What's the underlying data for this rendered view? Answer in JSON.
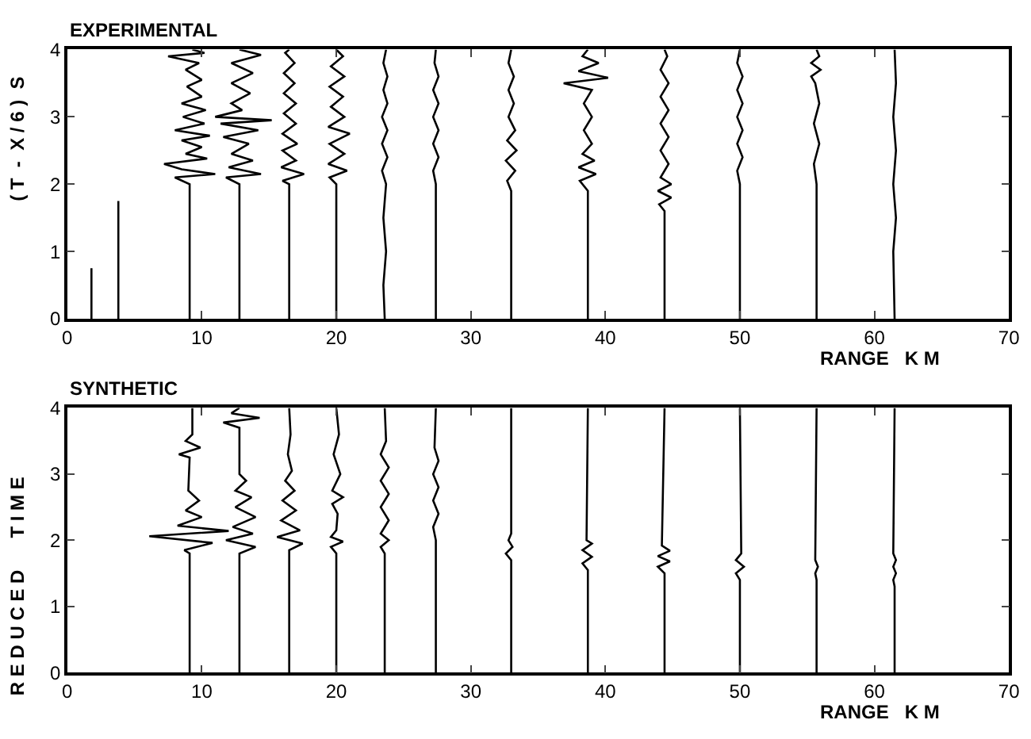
{
  "chart_data": [
    {
      "type": "line",
      "title": "EXPERIMENTAL",
      "xlabel": "RANGE   K M",
      "ylabel": "( T  -  X / 6 )  S",
      "xlim": [
        0,
        70
      ],
      "ylim": [
        0,
        4
      ],
      "xticks": [
        0,
        10,
        20,
        30,
        40,
        50,
        60,
        70
      ],
      "yticks": [
        0,
        1,
        2,
        3,
        4
      ],
      "series": [
        {
          "color": "#000000",
          "x": [
            1.8,
            1.8
          ],
          "values": [
            0,
            0.75
          ]
        },
        {
          "color": "#000000",
          "x": [
            3.8,
            3.8
          ],
          "values": [
            0,
            1.75
          ]
        },
        {
          "color": "#000000",
          "x": [
            9.1,
            9.1,
            8.0,
            11.0,
            8.5,
            7.2,
            10.4,
            8.8,
            10.0,
            8.5,
            10.6,
            8.0,
            10.2,
            8.6,
            10.3,
            8.5,
            10.0,
            8.9,
            10.0,
            8.8,
            9.8,
            7.5,
            10.2,
            9.3
          ],
          "values": [
            0,
            2.0,
            2.1,
            2.15,
            2.22,
            2.3,
            2.38,
            2.45,
            2.55,
            2.65,
            2.72,
            2.8,
            2.9,
            3.0,
            3.1,
            3.2,
            3.3,
            3.45,
            3.55,
            3.7,
            3.8,
            3.9,
            3.95,
            4.0
          ]
        },
        {
          "color": "#000000",
          "x": [
            12.8,
            12.8,
            11.8,
            14.4,
            12.0,
            13.8,
            12.2,
            13.5,
            11.6,
            14.2,
            11.4,
            15.2,
            11.0,
            13.0,
            12.2,
            13.6,
            12.2,
            13.8,
            12.2,
            14.4,
            12.8
          ],
          "values": [
            0,
            2.0,
            2.1,
            2.15,
            2.25,
            2.35,
            2.45,
            2.6,
            2.7,
            2.8,
            2.9,
            2.95,
            3.0,
            3.1,
            3.2,
            3.35,
            3.5,
            3.65,
            3.8,
            3.92,
            4.0
          ]
        },
        {
          "color": "#000000",
          "x": [
            16.5,
            16.5,
            16.0,
            17.6,
            15.9,
            17.0,
            16.0,
            17.1,
            16.0,
            17.0,
            16.1,
            17.0,
            16.1,
            16.9,
            16.1,
            16.9,
            16.2,
            16.5
          ],
          "values": [
            0,
            2.0,
            2.05,
            2.15,
            2.25,
            2.35,
            2.5,
            2.6,
            2.75,
            2.9,
            3.05,
            3.2,
            3.35,
            3.5,
            3.65,
            3.8,
            3.95,
            4.0
          ]
        },
        {
          "color": "#000000",
          "x": [
            20.0,
            20.0,
            19.5,
            20.8,
            19.4,
            20.6,
            19.5,
            21.0,
            19.4,
            20.6,
            19.6,
            20.5,
            19.5,
            20.6,
            19.6,
            20.5,
            20.0
          ],
          "values": [
            0,
            2.0,
            2.1,
            2.2,
            2.3,
            2.45,
            2.6,
            2.75,
            2.85,
            3.0,
            3.15,
            3.3,
            3.45,
            3.6,
            3.75,
            3.9,
            4.0
          ]
        },
        {
          "color": "#000000",
          "x": [
            23.6,
            23.5,
            23.7,
            23.5,
            23.7,
            23.4,
            23.8,
            23.4,
            23.8,
            23.4,
            23.8,
            23.5,
            23.8,
            23.5,
            23.7
          ],
          "values": [
            0,
            0.5,
            1.0,
            1.5,
            2.0,
            2.2,
            2.4,
            2.6,
            2.8,
            3.0,
            3.2,
            3.4,
            3.6,
            3.8,
            4.0
          ]
        },
        {
          "color": "#000000",
          "x": [
            27.4,
            27.4,
            27.2,
            27.6,
            27.2,
            27.6,
            27.2,
            27.6,
            27.2,
            27.6,
            27.3,
            27.4
          ],
          "values": [
            0,
            2.0,
            2.2,
            2.4,
            2.6,
            2.8,
            3.0,
            3.2,
            3.4,
            3.6,
            3.8,
            4.0
          ]
        },
        {
          "color": "#000000",
          "x": [
            33.0,
            33.0,
            32.7,
            33.3,
            32.6,
            33.4,
            32.7,
            33.3,
            32.8,
            33.2,
            32.8,
            33.2,
            32.8,
            33.0
          ],
          "values": [
            0,
            1.9,
            2.05,
            2.2,
            2.35,
            2.5,
            2.65,
            2.8,
            3.0,
            3.2,
            3.4,
            3.6,
            3.8,
            4.0
          ]
        },
        {
          "color": "#000000",
          "x": [
            38.7,
            38.7,
            38.1,
            39.3,
            38.0,
            39.2,
            38.3,
            39.0,
            38.4,
            39.0,
            38.4,
            39.0,
            36.9,
            40.2,
            38.0,
            39.5,
            38.3,
            38.7
          ],
          "values": [
            0,
            1.9,
            2.05,
            2.15,
            2.25,
            2.35,
            2.45,
            2.6,
            2.8,
            3.0,
            3.2,
            3.4,
            3.5,
            3.58,
            3.68,
            3.8,
            3.9,
            4.0
          ]
        },
        {
          "color": "#000000",
          "x": [
            44.4,
            44.4,
            44.0,
            44.9,
            43.9,
            44.9,
            44.1,
            44.7,
            44.1,
            44.7,
            44.1,
            44.7,
            44.1,
            44.7,
            44.1,
            44.6,
            44.4
          ],
          "values": [
            0,
            1.6,
            1.7,
            1.8,
            1.9,
            2.0,
            2.1,
            2.3,
            2.5,
            2.7,
            2.9,
            3.1,
            3.3,
            3.5,
            3.7,
            3.9,
            4.0
          ]
        },
        {
          "color": "#000000",
          "x": [
            50.0,
            50.0,
            49.8,
            50.2,
            49.8,
            50.2,
            49.8,
            50.2,
            49.8,
            50.2,
            49.8,
            50.0
          ],
          "values": [
            0,
            2.0,
            2.2,
            2.4,
            2.6,
            2.8,
            3.0,
            3.2,
            3.4,
            3.6,
            3.8,
            4.0
          ]
        },
        {
          "color": "#000000",
          "x": [
            55.7,
            55.7,
            55.5,
            55.9,
            55.5,
            55.9,
            55.6,
            55.3,
            56.0,
            55.3,
            55.9,
            55.7
          ],
          "values": [
            0,
            2.0,
            2.3,
            2.6,
            2.9,
            3.2,
            3.5,
            3.6,
            3.7,
            3.8,
            3.9,
            4.0
          ]
        },
        {
          "color": "#000000",
          "x": [
            61.5,
            61.4,
            61.6,
            61.4,
            61.6,
            61.4,
            61.6,
            61.5
          ],
          "values": [
            0,
            1.0,
            1.5,
            2.0,
            2.5,
            3.0,
            3.5,
            4.0
          ]
        }
      ]
    },
    {
      "type": "line",
      "title": "SYNTHETIC",
      "xlabel": "RANGE   K M",
      "ylabel": "R E D U C E D      T I M E",
      "xlim": [
        0,
        70
      ],
      "ylim": [
        0,
        4
      ],
      "xticks": [
        0,
        10,
        20,
        30,
        40,
        50,
        60,
        70
      ],
      "yticks": [
        0,
        1,
        2,
        3,
        4
      ],
      "series": [
        {
          "color": "#000000",
          "x": [
            9.1,
            9.1,
            8.7,
            10.8,
            6.1,
            12.0,
            8.2,
            10.0,
            8.8,
            9.8,
            9.0,
            9.1,
            8.3,
            9.9,
            8.8,
            9.3,
            9.3
          ],
          "values": [
            0,
            1.8,
            1.85,
            1.96,
            2.06,
            2.14,
            2.22,
            2.35,
            2.45,
            2.6,
            2.75,
            3.25,
            3.3,
            3.4,
            3.5,
            3.6,
            4.0
          ]
        },
        {
          "color": "#000000",
          "x": [
            12.8,
            12.8,
            14.0,
            11.8,
            13.8,
            12.3,
            14.0,
            12.5,
            13.7,
            12.5,
            13.3,
            12.8,
            12.8,
            11.6,
            14.3,
            12.2,
            12.8
          ],
          "values": [
            0,
            1.8,
            1.9,
            2.0,
            2.1,
            2.2,
            2.35,
            2.5,
            2.65,
            2.75,
            2.9,
            3.0,
            3.7,
            3.78,
            3.85,
            3.92,
            4.0
          ]
        },
        {
          "color": "#000000",
          "x": [
            16.5,
            16.5,
            17.5,
            15.6,
            17.3,
            15.9,
            17.0,
            16.0,
            16.9,
            16.2,
            16.7,
            16.4,
            16.6,
            16.5
          ],
          "values": [
            0,
            1.85,
            1.95,
            2.05,
            2.15,
            2.3,
            2.45,
            2.6,
            2.75,
            2.9,
            3.05,
            3.3,
            3.6,
            4.0
          ]
        },
        {
          "color": "#000000",
          "x": [
            20.0,
            20.0,
            19.6,
            20.5,
            19.6,
            20.0,
            20.1,
            19.7,
            20.5,
            19.7,
            20.3,
            19.8,
            20.2,
            20.0
          ],
          "values": [
            0,
            1.8,
            1.9,
            1.98,
            2.05,
            2.15,
            2.4,
            2.55,
            2.65,
            2.75,
            3.0,
            3.3,
            3.6,
            4.0
          ]
        },
        {
          "color": "#000000",
          "x": [
            23.6,
            23.6,
            23.3,
            23.9,
            23.3,
            23.9,
            23.3,
            23.9,
            23.3,
            23.9,
            23.3,
            23.7,
            23.6
          ],
          "values": [
            0,
            1.8,
            1.9,
            2.0,
            2.1,
            2.3,
            2.5,
            2.7,
            2.9,
            3.1,
            3.3,
            3.5,
            4.0
          ]
        },
        {
          "color": "#000000",
          "x": [
            27.4,
            27.4,
            27.2,
            27.6,
            27.2,
            27.6,
            27.2,
            27.6,
            27.3,
            27.4
          ],
          "values": [
            0,
            2.0,
            2.2,
            2.4,
            2.6,
            2.8,
            3.0,
            3.2,
            3.4,
            4.0
          ]
        },
        {
          "color": "#000000",
          "x": [
            33.0,
            33.0,
            32.6,
            33.1,
            32.8,
            33.0,
            33.0
          ],
          "values": [
            0,
            1.7,
            1.8,
            1.9,
            2.0,
            2.1,
            4.0
          ]
        },
        {
          "color": "#000000",
          "x": [
            38.7,
            38.7,
            38.3,
            39.0,
            38.3,
            39.0,
            38.6,
            38.7
          ],
          "values": [
            0,
            1.55,
            1.65,
            1.75,
            1.85,
            1.95,
            2.0,
            4.0
          ]
        },
        {
          "color": "#000000",
          "x": [
            44.4,
            44.4,
            43.9,
            44.8,
            43.9,
            44.8,
            44.2,
            44.4
          ],
          "values": [
            0,
            1.5,
            1.6,
            1.68,
            1.76,
            1.84,
            1.92,
            4.0
          ]
        },
        {
          "color": "#000000",
          "x": [
            50.0,
            50.0,
            49.7,
            50.3,
            49.7,
            50.1,
            50.0
          ],
          "values": [
            0,
            1.4,
            1.5,
            1.6,
            1.7,
            1.8,
            4.0
          ]
        },
        {
          "color": "#000000",
          "x": [
            55.7,
            55.7,
            55.6,
            55.8,
            55.6,
            55.7
          ],
          "values": [
            0,
            1.4,
            1.5,
            1.6,
            1.7,
            4.0
          ]
        },
        {
          "color": "#000000",
          "x": [
            61.5,
            61.5,
            61.4,
            61.6,
            61.4,
            61.6,
            61.4,
            61.5
          ],
          "values": [
            0,
            1.3,
            1.4,
            1.5,
            1.6,
            1.7,
            1.8,
            4.0
          ]
        }
      ]
    }
  ]
}
